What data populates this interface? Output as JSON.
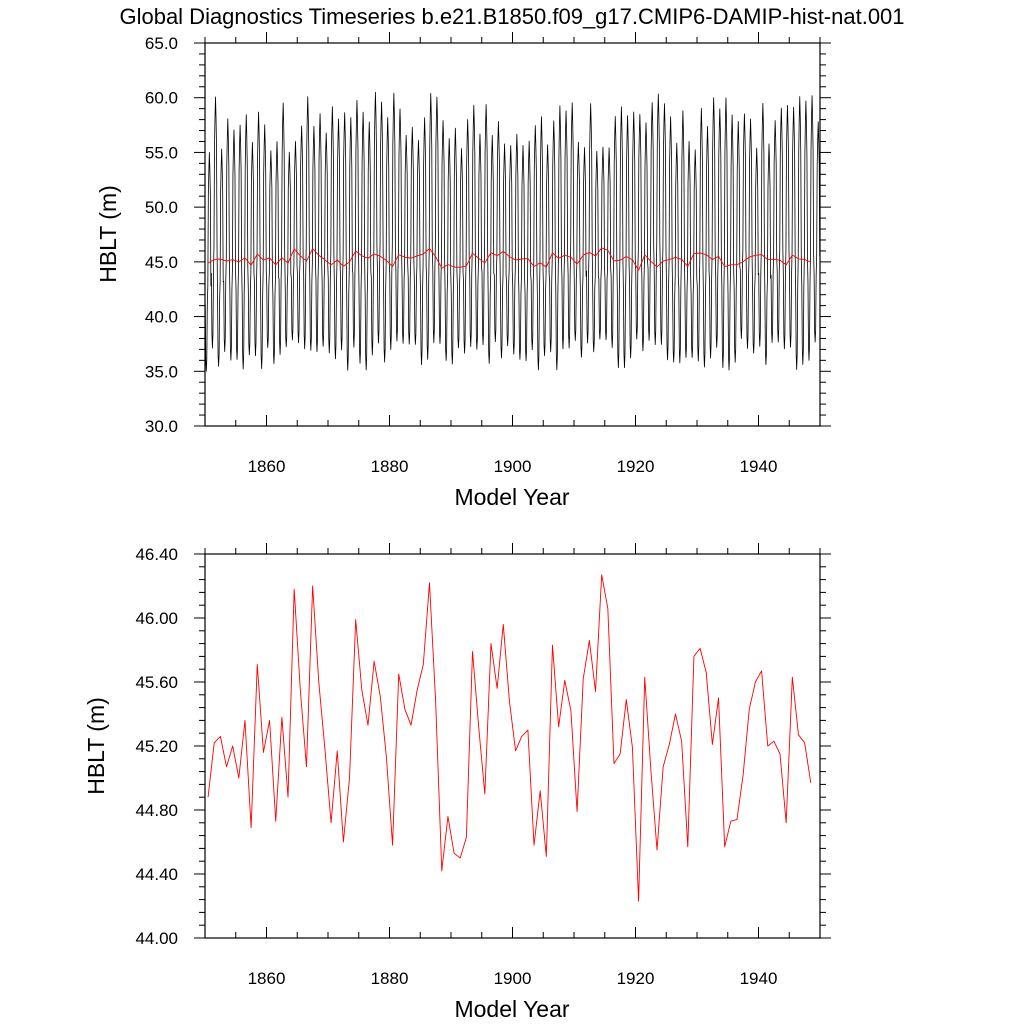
{
  "title": "Global Diagnostics Timeseries b.e21.B1850.f09_g17.CMIP6-DAMIP-hist-nat.001",
  "chart_data": [
    {
      "type": "line",
      "xlabel": "Model Year",
      "ylabel": "HBLT (m)",
      "xlim": [
        1850,
        1950
      ],
      "ylim": [
        30.0,
        65.0
      ],
      "xticks": [
        1860,
        1880,
        1900,
        1920,
        1940
      ],
      "yticks": [
        "30.0",
        "35.0",
        "40.0",
        "45.0",
        "50.0",
        "55.0",
        "60.0",
        "65.0"
      ],
      "grid": false,
      "series": [
        {
          "color": "#000000",
          "resolution": "monthly",
          "annual_cycle_min_approx": [
            35.0,
            38.0
          ],
          "annual_cycle_max_approx": [
            55.0,
            60.5
          ]
        },
        {
          "color": "#ff0000",
          "resolution": "annual",
          "values": [
            44.88,
            45.22,
            45.26,
            45.07,
            45.2,
            45.0,
            45.36,
            44.69,
            45.71,
            45.16,
            45.36,
            44.73,
            45.38,
            44.88,
            46.18,
            45.55,
            45.07,
            46.2,
            45.6,
            45.18,
            44.72,
            45.17,
            44.6,
            45.0,
            45.99,
            45.55,
            45.33,
            45.73,
            45.51,
            45.13,
            44.58,
            45.65,
            45.43,
            45.33,
            45.55,
            45.71,
            46.22,
            45.48,
            44.42,
            44.76,
            44.53,
            44.5,
            44.63,
            45.79,
            45.32,
            44.9,
            45.84,
            45.56,
            45.96,
            45.48,
            45.17,
            45.26,
            45.3,
            44.58,
            44.92,
            44.51,
            45.83,
            45.32,
            45.61,
            45.42,
            44.79,
            45.62,
            45.86,
            45.54,
            46.27,
            46.06,
            45.09,
            45.15,
            45.49,
            45.19,
            44.23,
            45.63,
            45.05,
            44.55,
            45.07,
            45.21,
            45.4,
            45.23,
            44.57,
            45.76,
            45.81,
            45.66,
            45.21,
            45.5,
            44.57,
            44.73,
            44.74,
            45.02,
            45.43,
            45.6,
            45.67,
            45.2,
            45.23,
            45.15,
            44.72,
            45.63,
            45.27,
            45.22,
            44.97
          ]
        }
      ]
    },
    {
      "type": "line",
      "xlabel": "Model Year",
      "ylabel": "HBLT (m)",
      "xlim": [
        1850,
        1950
      ],
      "ylim": [
        44.0,
        46.4
      ],
      "xticks": [
        1860,
        1880,
        1900,
        1920,
        1940
      ],
      "yticks": [
        "44.00",
        "44.40",
        "44.80",
        "45.20",
        "45.60",
        "46.00",
        "46.40"
      ],
      "grid": false,
      "series": [
        {
          "color": "#ff0000",
          "resolution": "annual",
          "values": [
            44.88,
            45.22,
            45.26,
            45.07,
            45.2,
            45.0,
            45.36,
            44.69,
            45.71,
            45.16,
            45.36,
            44.73,
            45.38,
            44.88,
            46.18,
            45.55,
            45.07,
            46.2,
            45.6,
            45.18,
            44.72,
            45.17,
            44.6,
            45.0,
            45.99,
            45.55,
            45.33,
            45.73,
            45.51,
            45.13,
            44.58,
            45.65,
            45.43,
            45.33,
            45.55,
            45.71,
            46.22,
            45.48,
            44.42,
            44.76,
            44.53,
            44.5,
            44.63,
            45.79,
            45.32,
            44.9,
            45.84,
            45.56,
            45.96,
            45.48,
            45.17,
            45.26,
            45.3,
            44.58,
            44.92,
            44.51,
            45.83,
            45.32,
            45.61,
            45.42,
            44.79,
            45.62,
            45.86,
            45.54,
            46.27,
            46.06,
            45.09,
            45.15,
            45.49,
            45.19,
            44.23,
            45.63,
            45.05,
            44.55,
            45.07,
            45.21,
            45.4,
            45.23,
            44.57,
            45.76,
            45.81,
            45.66,
            45.21,
            45.5,
            44.57,
            44.73,
            44.74,
            45.02,
            45.43,
            45.6,
            45.67,
            45.2,
            45.23,
            45.15,
            44.72,
            45.63,
            45.27,
            45.22,
            44.97
          ]
        }
      ]
    }
  ]
}
